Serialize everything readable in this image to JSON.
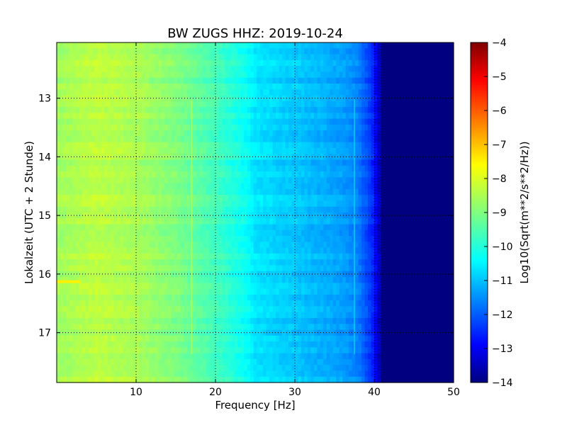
{
  "chart_data": {
    "type": "heatmap",
    "title": "BW ZUGS HHZ: 2019-10-24",
    "xlabel": "Frequency [Hz]",
    "ylabel": "Lokalzeit (UTC + 2 Stunde)",
    "xlim": [
      0,
      50
    ],
    "ylim": [
      12.05,
      17.85
    ],
    "y_inverted": true,
    "x_ticks": [
      10,
      20,
      30,
      40,
      50
    ],
    "y_ticks": [
      13,
      14,
      15,
      16,
      17
    ],
    "grid": true,
    "colormap": "jet",
    "colorbar": {
      "label": "Log10(Sqrt(m**2/s**2/Hz))",
      "range": [
        -14,
        -4
      ],
      "ticks": [
        -4,
        -5,
        -6,
        -7,
        -8,
        -9,
        -10,
        -11,
        -12,
        -13,
        -14
      ]
    },
    "spectral_profile": {
      "frequency_hz": [
        0,
        5,
        10,
        15,
        20,
        22,
        24,
        25,
        28,
        30,
        33,
        36,
        38,
        40,
        41,
        50
      ],
      "log10_amplitude": [
        -8.7,
        -8.4,
        -8.6,
        -9.0,
        -9.6,
        -9.9,
        -10.2,
        -10.5,
        -10.7,
        -10.8,
        -11.0,
        -11.2,
        -11.5,
        -12.5,
        -14.0,
        -14.0
      ]
    },
    "features": [
      {
        "type": "vertical-line",
        "frequency_hz": 17.0,
        "log10_amplitude": -8.6
      },
      {
        "type": "vertical-line",
        "frequency_hz": 37.5,
        "log10_amplitude": -10.8
      },
      {
        "type": "horizontal-band",
        "time": 16.13,
        "freq_range": [
          0,
          3
        ],
        "log10_amplitude": -7.6
      }
    ]
  },
  "colors": {
    "jet": [
      "#00007f",
      "#0000ff",
      "#007fff",
      "#00ffff",
      "#7fff7f",
      "#ffff00",
      "#ff7f00",
      "#ff0000",
      "#7f0000"
    ]
  }
}
